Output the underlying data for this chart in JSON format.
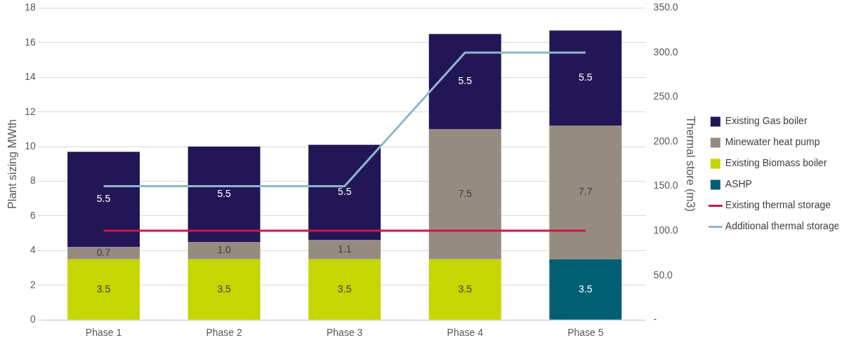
{
  "chart_data": {
    "type": "bar",
    "stacked": true,
    "categories": [
      "Phase 1",
      "Phase 2",
      "Phase 3",
      "Phase 4",
      "Phase 5"
    ],
    "ylabel": "Plant sizing MWth",
    "y2label": "Thermal store (m3)",
    "series": [
      {
        "name": "ASHP",
        "color": "#005f73",
        "values": [
          null,
          null,
          null,
          null,
          3.5
        ],
        "value_labels": [
          null,
          null,
          null,
          null,
          "3.5"
        ]
      },
      {
        "name": "Existing Biomass boiler",
        "color": "#c5d600",
        "values": [
          3.5,
          3.5,
          3.5,
          3.5,
          null
        ],
        "value_labels": [
          "3.5",
          "3.5",
          "3.5",
          "3.5",
          null
        ]
      },
      {
        "name": "Minewater heat pump",
        "color": "#968b80",
        "values": [
          0.7,
          1.0,
          1.1,
          7.5,
          7.7
        ],
        "value_labels": [
          "0.7",
          "1.0",
          "1.1",
          "7.5",
          "7.7"
        ]
      },
      {
        "name": "Existing Gas boiler",
        "color": "#231656",
        "values": [
          5.5,
          5.5,
          5.5,
          5.5,
          5.5
        ],
        "value_labels": [
          "5.5",
          "5.5",
          "5.5",
          "5.5",
          "5.5"
        ]
      },
      {
        "name": "Existing thermal storage",
        "type": "line",
        "axis": "y2",
        "color": "#c8184a",
        "values": [
          100,
          100,
          100,
          100,
          100
        ]
      },
      {
        "name": "Additional thermal storage",
        "type": "line",
        "axis": "y2",
        "color": "#8fb8cc",
        "values": [
          150,
          150,
          150,
          300,
          300
        ]
      }
    ],
    "ylim": [
      0,
      18
    ],
    "yticks": [
      0,
      2,
      4,
      6,
      8,
      10,
      12,
      14,
      16,
      18
    ],
    "y2lim": [
      0,
      350
    ],
    "y2ticks": [
      {
        "value": 0,
        "label": "-"
      },
      {
        "value": 50,
        "label": "50.0"
      },
      {
        "value": 100,
        "label": "100.0"
      },
      {
        "value": 150,
        "label": "150.0"
      },
      {
        "value": 200,
        "label": "200.0"
      },
      {
        "value": 250,
        "label": "250.0"
      },
      {
        "value": 300,
        "label": "300.0"
      },
      {
        "value": 350,
        "label": "350.0"
      }
    ],
    "grid": "y",
    "legend": "right",
    "marker": "none"
  }
}
